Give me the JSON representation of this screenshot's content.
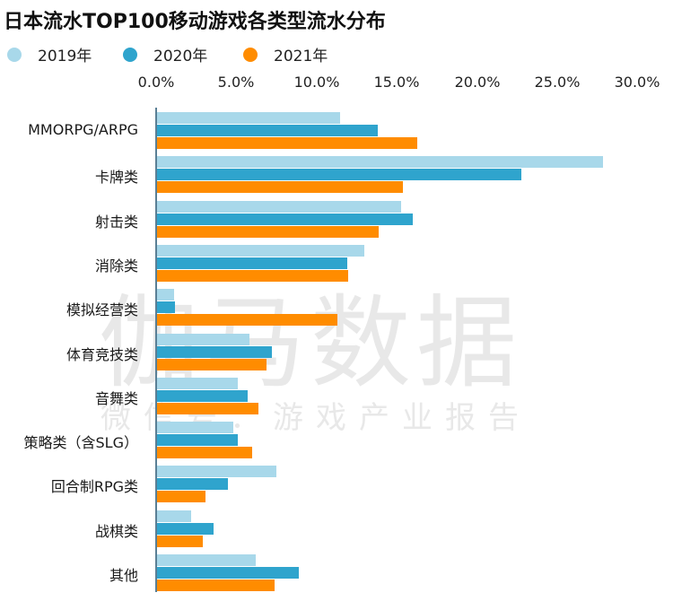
{
  "title": "日本流水TOP100移动游戏各类型流水分布",
  "legend": [
    {
      "label": "2019年",
      "color": "#a8d8ea"
    },
    {
      "label": "2020年",
      "color": "#2fa4cd"
    },
    {
      "label": "2021年",
      "color": "#ff8c00"
    }
  ],
  "watermark": {
    "main": "伽马数据",
    "sub": "微信号：游戏产业报告"
  },
  "chart_data": {
    "type": "bar",
    "orientation": "horizontal",
    "title": "日本流水TOP100移动游戏各类型流水分布",
    "xlabel": "",
    "ylabel": "",
    "xlim": [
      0,
      30
    ],
    "x_ticks": [
      "0.0%",
      "5.0%",
      "10.0%",
      "15.0%",
      "20.0%",
      "25.0%",
      "30.0%"
    ],
    "x_axis_position": "top",
    "grid": false,
    "legend_position": "top-left",
    "categories": [
      "MMORPG/ARPG",
      "卡牌类",
      "射击类",
      "消除类",
      "模拟经营类",
      "体育竞技类",
      "音舞类",
      "策略类（含SLG）",
      "回合制RPG类",
      "战棋类",
      "其他"
    ],
    "series": [
      {
        "name": "2019年",
        "color": "#a8d8ea",
        "values": [
          11.5,
          27.9,
          15.3,
          13.0,
          1.1,
          5.8,
          5.1,
          4.8,
          7.5,
          2.2,
          6.2
        ]
      },
      {
        "name": "2020年",
        "color": "#2fa4cd",
        "values": [
          13.8,
          22.8,
          16.0,
          11.9,
          1.2,
          7.2,
          5.7,
          5.1,
          4.5,
          3.6,
          8.9
        ]
      },
      {
        "name": "2021年",
        "color": "#ff8c00",
        "values": [
          16.3,
          15.4,
          13.9,
          12.0,
          11.3,
          6.9,
          6.4,
          6.0,
          3.1,
          2.9,
          7.4
        ]
      }
    ]
  }
}
